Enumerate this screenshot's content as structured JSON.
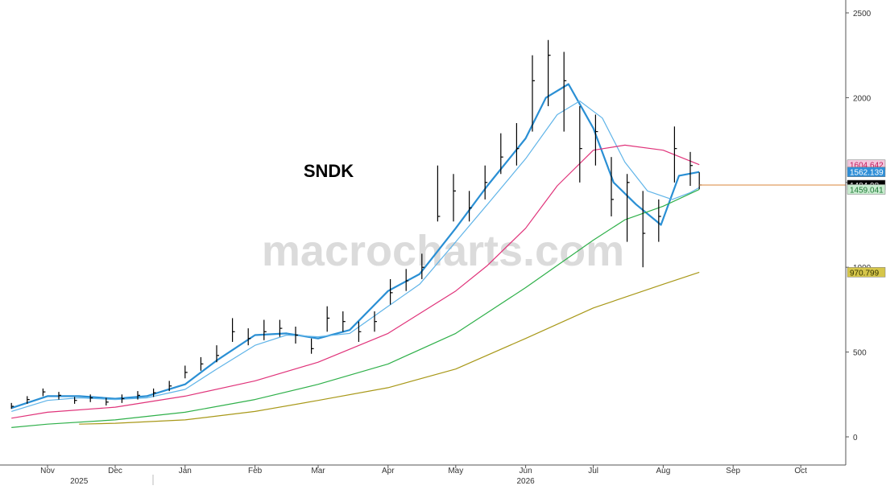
{
  "chart_data": {
    "type": "line",
    "title": "SNDK",
    "watermark": "macrocharts.com",
    "xlabel": "",
    "ylabel": "",
    "ylim": [
      -160,
      2560
    ],
    "y_ticks": [
      0,
      500,
      1000,
      1500,
      2000,
      2500
    ],
    "y_tick_labels": [
      "0",
      "500",
      "1000",
      "1500",
      "2000",
      "2500"
    ],
    "x_months": [
      {
        "label": "Nov",
        "date": "2025-11-01"
      },
      {
        "label": "Dec",
        "date": "2025-12-01"
      },
      {
        "label": "Jan",
        "date": "2026-01-01"
      },
      {
        "label": "Feb",
        "date": "2026-02-01"
      },
      {
        "label": "Mar",
        "date": "2026-03-01"
      },
      {
        "label": "Apr",
        "date": "2026-04-01"
      },
      {
        "label": "May",
        "date": "2026-05-01"
      },
      {
        "label": "Jun",
        "date": "2026-06-01"
      },
      {
        "label": "Jul",
        "date": "2026-07-01"
      },
      {
        "label": "Aug",
        "date": "2026-08-01"
      },
      {
        "label": "Sep",
        "date": "2026-09-01"
      },
      {
        "label": "Oct",
        "date": "2026-10-01"
      }
    ],
    "x_years": [
      {
        "label": "2025",
        "date": "2025-11-15"
      },
      {
        "label": "2026",
        "date": "2026-06-01"
      }
    ],
    "price_bars": {
      "name": "SNDK",
      "color": "#000000",
      "dates": [
        "2025-10-16",
        "2025-10-23",
        "2025-10-30",
        "2025-11-06",
        "2025-11-13",
        "2025-11-20",
        "2025-11-27",
        "2025-12-04",
        "2025-12-11",
        "2025-12-18",
        "2025-12-25",
        "2026-01-01",
        "2026-01-08",
        "2026-01-15",
        "2026-01-22",
        "2026-01-29",
        "2026-02-05",
        "2026-02-12",
        "2026-02-19",
        "2026-02-26",
        "2026-03-05",
        "2026-03-12",
        "2026-03-19",
        "2026-03-26",
        "2026-04-02",
        "2026-04-09",
        "2026-04-16",
        "2026-04-23",
        "2026-04-30",
        "2026-05-07",
        "2026-05-14",
        "2026-05-21",
        "2026-05-28",
        "2026-06-04",
        "2026-06-11",
        "2026-06-18",
        "2026-06-25",
        "2026-07-02",
        "2026-07-09",
        "2026-07-16",
        "2026-07-23",
        "2026-07-30",
        "2026-08-06",
        "2026-08-13",
        "2026-08-17"
      ],
      "close": [
        180,
        220,
        265,
        245,
        215,
        230,
        205,
        225,
        245,
        260,
        300,
        380,
        430,
        480,
        620,
        580,
        620,
        640,
        600,
        520,
        700,
        680,
        620,
        680,
        850,
        920,
        1000,
        1300,
        1450,
        1350,
        1500,
        1650,
        1700,
        2100,
        2250,
        2100,
        1700,
        1800,
        1400,
        1500,
        1200,
        1300,
        1700,
        1600,
        1484.98
      ],
      "high": [
        200,
        240,
        285,
        265,
        235,
        250,
        230,
        250,
        270,
        285,
        330,
        420,
        470,
        540,
        700,
        640,
        690,
        690,
        650,
        580,
        770,
        740,
        680,
        740,
        930,
        990,
        1080,
        1600,
        1550,
        1450,
        1600,
        1790,
        1850,
        2250,
        2340,
        2270,
        1950,
        1900,
        1650,
        1550,
        1450,
        1400,
        1830,
        1680,
        1560
      ],
      "low": [
        165,
        195,
        240,
        220,
        195,
        205,
        185,
        200,
        220,
        235,
        270,
        345,
        390,
        440,
        560,
        540,
        570,
        590,
        550,
        490,
        620,
        620,
        560,
        620,
        780,
        860,
        930,
        1270,
        1270,
        1270,
        1400,
        1550,
        1600,
        1800,
        1950,
        1800,
        1500,
        1600,
        1300,
        1150,
        1000,
        1150,
        1500,
        1480,
        1460
      ]
    },
    "series": [
      {
        "name": "",
        "color": "#2a8fd4",
        "width": 2.2,
        "dates": [
          "2025-10-16",
          "2025-11-01",
          "2025-11-15",
          "2025-12-01",
          "2025-12-15",
          "2026-01-01",
          "2026-01-15",
          "2026-02-01",
          "2026-02-15",
          "2026-03-01",
          "2026-03-15",
          "2026-04-01",
          "2026-04-15",
          "2026-05-01",
          "2026-05-15",
          "2026-06-01",
          "2026-06-10",
          "2026-06-20",
          "2026-07-01",
          "2026-07-10",
          "2026-07-20",
          "2026-07-31",
          "2026-08-08",
          "2026-08-17"
        ],
        "values": [
          170,
          240,
          240,
          225,
          240,
          310,
          450,
          600,
          610,
          580,
          630,
          860,
          960,
          1230,
          1480,
          1760,
          2000,
          2080,
          1820,
          1500,
          1370,
          1250,
          1540,
          1562.139
        ]
      },
      {
        "name": "",
        "color": "#60b4e8",
        "width": 1.2,
        "dates": [
          "2025-10-16",
          "2025-11-01",
          "2025-11-15",
          "2025-12-01",
          "2025-12-15",
          "2026-01-01",
          "2026-01-15",
          "2026-02-01",
          "2026-02-15",
          "2026-03-01",
          "2026-03-15",
          "2026-04-01",
          "2026-04-15",
          "2026-05-01",
          "2026-05-15",
          "2026-06-01",
          "2026-06-15",
          "2026-06-25",
          "2026-07-05",
          "2026-07-15",
          "2026-07-25",
          "2026-08-05",
          "2026-08-13",
          "2026-08-17"
        ],
        "values": [
          150,
          215,
          230,
          220,
          230,
          280,
          400,
          540,
          600,
          590,
          610,
          770,
          900,
          1150,
          1370,
          1640,
          1900,
          1980,
          1880,
          1620,
          1450,
          1400,
          1440,
          1470
        ]
      },
      {
        "name": "",
        "color": "#e0337a",
        "width": 1.2,
        "dates": [
          "2025-10-16",
          "2025-11-01",
          "2025-12-01",
          "2026-01-01",
          "2026-02-01",
          "2026-03-01",
          "2026-04-01",
          "2026-05-01",
          "2026-05-15",
          "2026-06-01",
          "2026-06-15",
          "2026-07-01",
          "2026-07-15",
          "2026-08-01",
          "2026-08-17"
        ],
        "values": [
          110,
          145,
          175,
          240,
          330,
          440,
          610,
          860,
          1010,
          1230,
          1480,
          1690,
          1720,
          1690,
          1604.642
        ]
      },
      {
        "name": "",
        "color": "#2fb04a",
        "width": 1.2,
        "dates": [
          "2025-10-16",
          "2025-11-01",
          "2025-12-01",
          "2026-01-01",
          "2026-02-01",
          "2026-03-01",
          "2026-04-01",
          "2026-05-01",
          "2026-06-01",
          "2026-07-01",
          "2026-07-15",
          "2026-08-01",
          "2026-08-17"
        ],
        "values": [
          55,
          75,
          100,
          145,
          220,
          310,
          430,
          610,
          880,
          1160,
          1280,
          1360,
          1459.04
        ]
      },
      {
        "name": "",
        "color": "#a89818",
        "width": 1.2,
        "dates": [
          "2025-11-15",
          "2025-12-01",
          "2026-01-01",
          "2026-02-01",
          "2026-03-01",
          "2026-04-01",
          "2026-05-01",
          "2026-06-01",
          "2026-07-01",
          "2026-08-01",
          "2026-08-17"
        ],
        "values": [
          75,
          80,
          100,
          150,
          215,
          290,
          400,
          580,
          760,
          900,
          970.799
        ]
      }
    ],
    "reference_line": {
      "value": 1484.98,
      "color": "#d9843a"
    },
    "value_badges": [
      {
        "label": "1604.642",
        "value": 1604.642,
        "bg": "#f2c6dc",
        "fg": "#c2185b"
      },
      {
        "label": "1562.139",
        "value": 1562.139,
        "bg": "#2f8fd8",
        "fg": "#ffffff"
      },
      {
        "label": "1484.98",
        "value": 1484.98,
        "bg": "#000000",
        "fg": "#ffffff"
      },
      {
        "label": "1459.041",
        "value": 1459.041,
        "bg": "#c9ecd0",
        "fg": "#1e7a34"
      },
      {
        "label": "970.799",
        "value": 970.799,
        "bg": "#d6c64a",
        "fg": "#333300"
      }
    ],
    "grid": false,
    "legend": "none"
  }
}
